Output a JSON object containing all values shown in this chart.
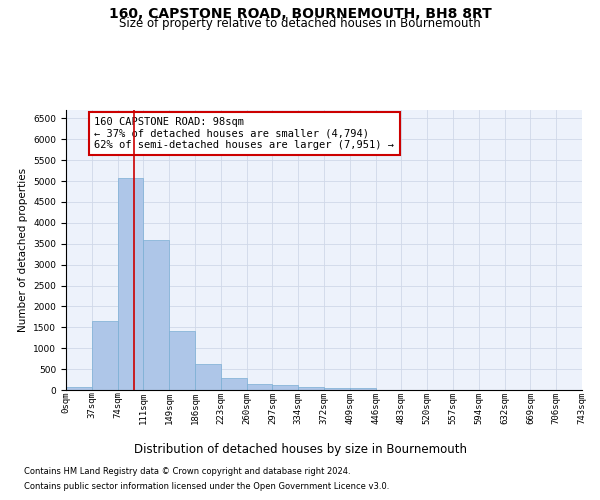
{
  "title": "160, CAPSTONE ROAD, BOURNEMOUTH, BH8 8RT",
  "subtitle": "Size of property relative to detached houses in Bournemouth",
  "xlabel": "Distribution of detached houses by size in Bournemouth",
  "ylabel": "Number of detached properties",
  "footnote1": "Contains HM Land Registry data © Crown copyright and database right 2024.",
  "footnote2": "Contains public sector information licensed under the Open Government Licence v3.0.",
  "bar_values": [
    75,
    1650,
    5075,
    3600,
    1420,
    620,
    290,
    145,
    110,
    80,
    55,
    55,
    0,
    0,
    0,
    0,
    0,
    0,
    0,
    0
  ],
  "bin_labels": [
    "0sqm",
    "37sqm",
    "74sqm",
    "111sqm",
    "149sqm",
    "186sqm",
    "223sqm",
    "260sqm",
    "297sqm",
    "334sqm",
    "372sqm",
    "409sqm",
    "446sqm",
    "483sqm",
    "520sqm",
    "557sqm",
    "594sqm",
    "632sqm",
    "669sqm",
    "706sqm",
    "743sqm"
  ],
  "bar_color": "#aec6e8",
  "bar_edge_color": "#7aaed4",
  "grid_color": "#d0d8e8",
  "annotation_line1": "160 CAPSTONE ROAD: 98sqm",
  "annotation_line2": "← 37% of detached houses are smaller (4,794)",
  "annotation_line3": "62% of semi-detached houses are larger (7,951) →",
  "vline_color": "#cc0000",
  "bar_color_bg": "#edf2fb",
  "ylim": [
    0,
    6700
  ],
  "yticks": [
    0,
    500,
    1000,
    1500,
    2000,
    2500,
    3000,
    3500,
    4000,
    4500,
    5000,
    5500,
    6000,
    6500
  ],
  "title_fontsize": 10,
  "subtitle_fontsize": 8.5,
  "xlabel_fontsize": 8.5,
  "ylabel_fontsize": 7.5,
  "annotation_fontsize": 7.5,
  "tick_fontsize": 6.5,
  "footnote_fontsize": 6.0
}
